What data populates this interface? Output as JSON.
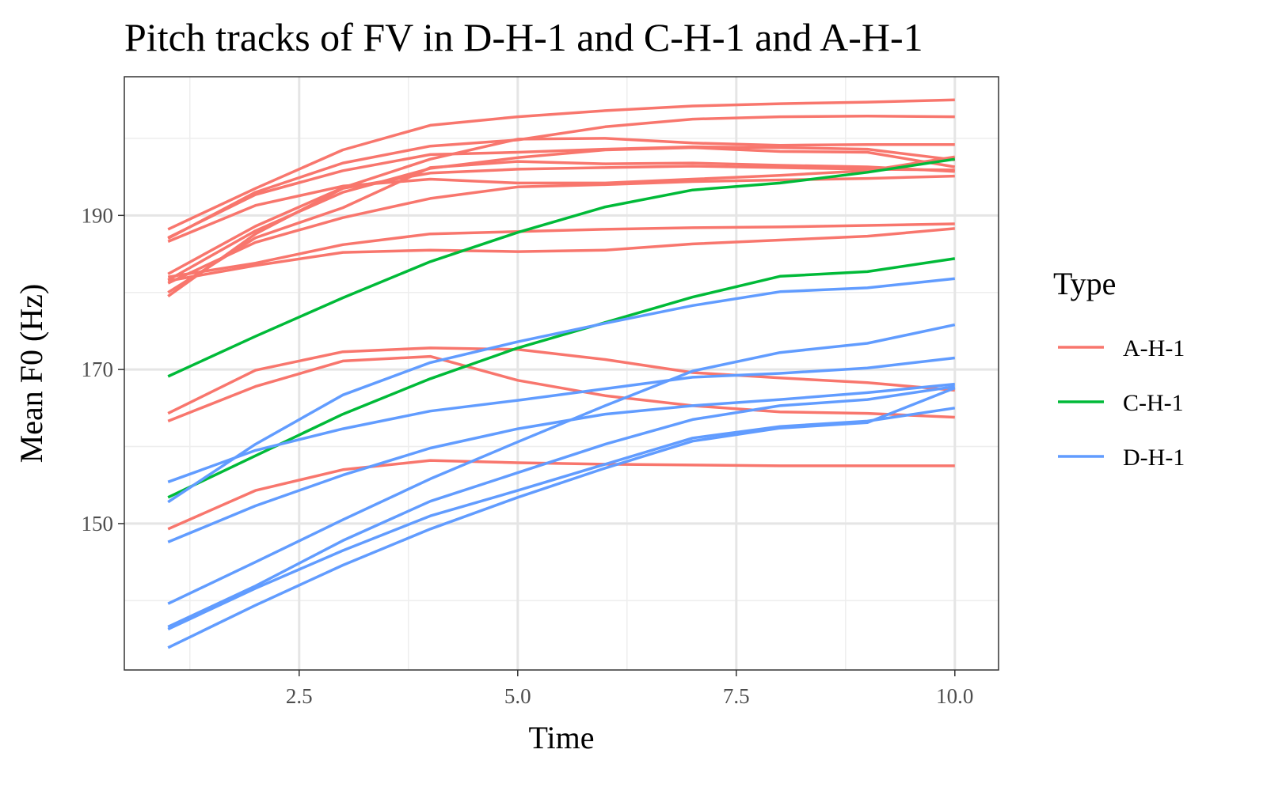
{
  "chart_data": {
    "type": "line",
    "title": "Pitch tracks of FV in D-H-1 and C-H-1 and A-H-1",
    "xlabel": "Time",
    "ylabel": "Mean F0 (Hz)",
    "xlim": [
      0.5,
      10.5
    ],
    "ylim": [
      131,
      208
    ],
    "x_major_ticks": [
      2.5,
      5.0,
      7.5,
      10.0
    ],
    "x_tick_labels": [
      "2.5",
      "5.0",
      "7.5",
      "10.0"
    ],
    "x_minor_ticks": [
      1.25,
      3.75,
      6.25,
      8.75
    ],
    "y_major_ticks": [
      150,
      170,
      190
    ],
    "y_tick_labels": [
      "150",
      "170",
      "190"
    ],
    "y_minor_ticks": [
      140,
      160,
      180,
      200
    ],
    "grid": true,
    "legend": {
      "title": "Type",
      "position": "right",
      "entries": [
        {
          "label": "A-H-1",
          "color": "#F8766D"
        },
        {
          "label": "C-H-1",
          "color": "#00BA38"
        },
        {
          "label": "D-H-1",
          "color": "#619CFF"
        }
      ]
    },
    "x": [
      1,
      2,
      3,
      4,
      5,
      6,
      7,
      8,
      9,
      10
    ],
    "series": [
      {
        "group": "A-H-1",
        "values": [
          188.2,
          193.5,
          198.5,
          201.7,
          202.8,
          203.6,
          204.2,
          204.5,
          204.7,
          205.0
        ]
      },
      {
        "group": "A-H-1",
        "values": [
          187.0,
          193.0,
          196.8,
          199.0,
          199.8,
          201.5,
          202.5,
          202.8,
          202.9,
          202.8
        ]
      },
      {
        "group": "A-H-1",
        "values": [
          186.6,
          191.3,
          193.8,
          194.7,
          194.2,
          194.2,
          194.7,
          195.2,
          195.8,
          197.6
        ]
      },
      {
        "group": "A-H-1",
        "values": [
          187.1,
          192.7,
          195.8,
          197.9,
          198.2,
          198.6,
          198.9,
          198.8,
          198.6,
          197.2
        ]
      },
      {
        "group": "A-H-1",
        "values": [
          182.4,
          188.6,
          193.6,
          197.3,
          199.9,
          200.0,
          199.4,
          199.1,
          199.2,
          199.2
        ]
      },
      {
        "group": "A-H-1",
        "values": [
          181.6,
          188.0,
          193.0,
          196.1,
          197.5,
          198.5,
          198.8,
          198.3,
          198.2,
          196.3
        ]
      },
      {
        "group": "A-H-1",
        "values": [
          180.0,
          187.1,
          191.0,
          196.2,
          197.0,
          196.7,
          196.8,
          196.5,
          196.3,
          195.7
        ]
      },
      {
        "group": "A-H-1",
        "values": [
          181.2,
          186.5,
          189.7,
          192.2,
          193.7,
          194.0,
          194.4,
          194.6,
          194.8,
          195.1
        ]
      },
      {
        "group": "A-H-1",
        "values": [
          179.5,
          187.6,
          193.5,
          195.5,
          196.0,
          196.2,
          196.4,
          196.2,
          196.0,
          195.9
        ]
      },
      {
        "group": "A-H-1",
        "values": [
          182.0,
          183.8,
          186.2,
          187.6,
          187.9,
          188.2,
          188.4,
          188.5,
          188.7,
          188.9
        ]
      },
      {
        "group": "A-H-1",
        "values": [
          181.5,
          183.5,
          185.2,
          185.5,
          185.3,
          185.5,
          186.3,
          186.8,
          187.3,
          188.3
        ]
      },
      {
        "group": "A-H-1",
        "values": [
          164.3,
          169.9,
          172.3,
          172.8,
          172.6,
          171.3,
          169.6,
          168.9,
          168.3,
          167.3
        ]
      },
      {
        "group": "A-H-1",
        "values": [
          163.3,
          167.8,
          171.1,
          171.7,
          168.6,
          166.6,
          165.3,
          164.5,
          164.3,
          163.8
        ]
      },
      {
        "group": "A-H-1",
        "values": [
          149.3,
          154.3,
          157.0,
          158.2,
          157.9,
          157.7,
          157.6,
          157.5,
          157.5,
          157.5
        ]
      },
      {
        "group": "C-H-1",
        "values": [
          169.1,
          174.3,
          179.3,
          184.0,
          187.8,
          191.1,
          193.3,
          194.2,
          195.6,
          197.3
        ]
      },
      {
        "group": "C-H-1",
        "values": [
          153.4,
          158.8,
          164.2,
          168.8,
          172.8,
          176.1,
          179.4,
          182.1,
          182.7,
          184.4
        ]
      },
      {
        "group": "D-H-1",
        "values": [
          152.8,
          160.3,
          166.7,
          170.9,
          173.6,
          176.0,
          178.3,
          180.1,
          180.6,
          181.8
        ]
      },
      {
        "group": "D-H-1",
        "values": [
          155.4,
          159.5,
          162.3,
          164.6,
          166.0,
          167.5,
          169.0,
          169.5,
          170.2,
          171.5
        ]
      },
      {
        "group": "D-H-1",
        "values": [
          139.6,
          145.0,
          150.5,
          155.8,
          160.6,
          165.3,
          169.8,
          172.2,
          173.4,
          175.8
        ]
      },
      {
        "group": "D-H-1",
        "values": [
          147.6,
          152.3,
          156.3,
          159.8,
          162.3,
          164.2,
          165.3,
          166.1,
          167.0,
          168.1
        ]
      },
      {
        "group": "D-H-1",
        "values": [
          136.6,
          141.9,
          147.8,
          152.9,
          156.6,
          160.3,
          163.5,
          165.3,
          166.1,
          167.8
        ]
      },
      {
        "group": "D-H-1",
        "values": [
          136.3,
          141.6,
          146.5,
          151.0,
          154.3,
          157.7,
          161.1,
          162.6,
          163.3,
          165.0
        ]
      },
      {
        "group": "D-H-1",
        "values": [
          133.9,
          139.4,
          144.6,
          149.3,
          153.4,
          157.2,
          160.7,
          162.4,
          163.1,
          167.6
        ]
      }
    ]
  }
}
